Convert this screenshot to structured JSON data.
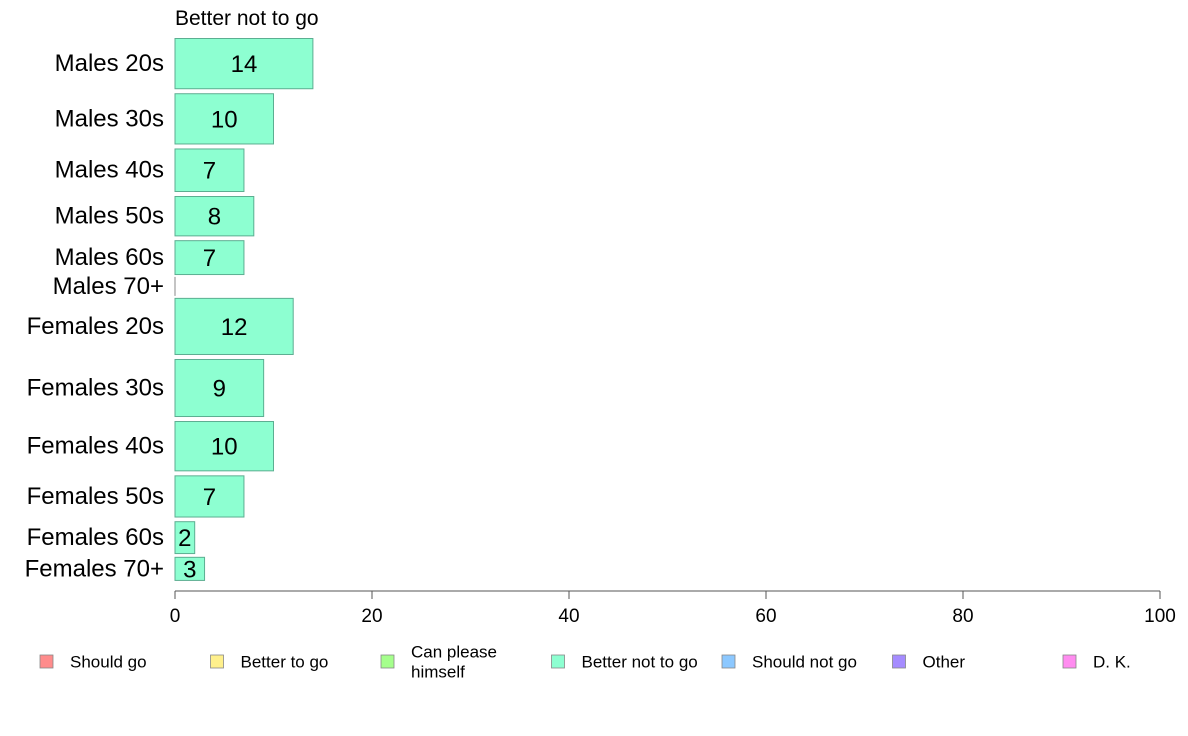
{
  "chart_data": {
    "type": "bar",
    "orientation": "horizontal",
    "title": "Better not to go",
    "categories": [
      "Males 20s",
      "Males 30s",
      "Males 40s",
      "Males 50s",
      "Males 60s",
      "Males 70+",
      "Females 20s",
      "Females 30s",
      "Females 40s",
      "Females 50s",
      "Females 60s",
      "Females 70+"
    ],
    "values": [
      14,
      10,
      7,
      8,
      7,
      0,
      12,
      9,
      10,
      7,
      2,
      3
    ],
    "value_labels": [
      "14",
      "10",
      "7",
      "8",
      "7",
      "",
      "12",
      "9",
      "10",
      "7",
      "2",
      "3"
    ],
    "category_weights": [
      1.22,
      1.22,
      1.05,
      0.98,
      0.85,
      0.42,
      1.35,
      1.37,
      1.2,
      1.02,
      0.8,
      0.58
    ],
    "xlim": [
      0,
      100
    ],
    "xticks": [
      0,
      20,
      40,
      60,
      80,
      100
    ],
    "xlabel": "",
    "ylabel": "",
    "grid": false,
    "bar_color": "#8dffd1",
    "bar_edge_color": "#5cae91",
    "legend": {
      "placement": "bottom",
      "entries": [
        {
          "label_lines": [
            "Should go"
          ],
          "color": "#ff8c8c"
        },
        {
          "label_lines": [
            "Better to go"
          ],
          "color": "#fff08c"
        },
        {
          "label_lines": [
            "Can please",
            "himself"
          ],
          "color": "#a5ff8c"
        },
        {
          "label_lines": [
            "Better not to go"
          ],
          "color": "#8dffd1"
        },
        {
          "label_lines": [
            "Should not go"
          ],
          "color": "#8cc8ff"
        },
        {
          "label_lines": [
            "Other"
          ],
          "color": "#a58cff"
        },
        {
          "label_lines": [
            "D. K."
          ],
          "color": "#ff8cf0"
        }
      ]
    }
  }
}
